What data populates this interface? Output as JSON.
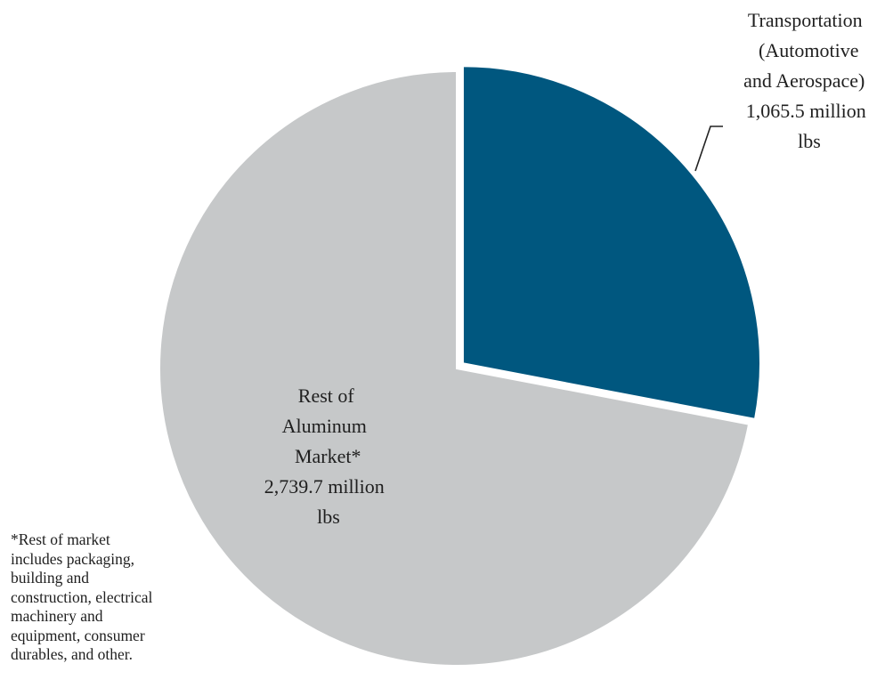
{
  "chart_data": {
    "type": "pie",
    "title": "",
    "slices": [
      {
        "name": "Transportation (Automotive and Aerospace)",
        "value": 1065.5,
        "unit": "million lbs",
        "color": "#00577f",
        "label_lines": [
          "Transportation",
          "(Automotive",
          "and Aerospace)",
          "1,065.5 million",
          "lbs"
        ],
        "exploded": true
      },
      {
        "name": "Rest of Aluminum Market*",
        "value": 2739.7,
        "unit": "million lbs",
        "color": "#c6c8c9",
        "label_lines": [
          "Rest of",
          "Aluminum",
          "Market*",
          "2,739.7 million",
          "lbs"
        ],
        "exploded": false
      }
    ],
    "footnote_lines": [
      "*Rest of market",
      "includes  packaging,",
      "building  and",
      "construction, electrical",
      "machinery and",
      "equipment, consumer",
      "durables, and other."
    ]
  }
}
